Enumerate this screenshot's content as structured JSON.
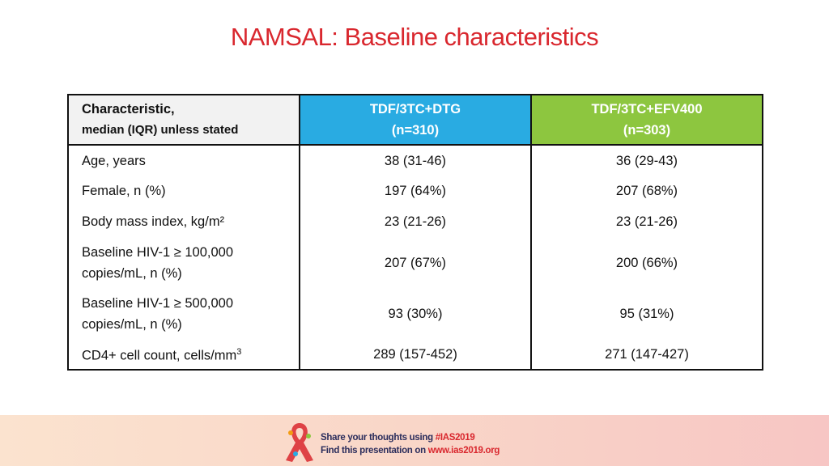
{
  "header": {
    "title": "NAMSAL: Baseline characteristics"
  },
  "table": {
    "columns": [
      {
        "lines": [
          "Characteristic,",
          "median (IQR) unless stated"
        ]
      },
      {
        "lines": [
          "TDF/3TC+DTG",
          "(n=310)"
        ]
      },
      {
        "lines": [
          "TDF/3TC+EFV400",
          "(n=303)"
        ]
      }
    ],
    "rows": [
      [
        {
          "lines": [
            "Age, years"
          ]
        },
        "38 (31-46)",
        "36 (29-43)"
      ],
      [
        {
          "lines": [
            "Female, n (%)"
          ]
        },
        "197 (64%)",
        "207 (68%)"
      ],
      [
        {
          "lines": [
            "Body mass index, kg/m²"
          ]
        },
        "23 (21-26)",
        "23 (21-26)"
      ],
      [
        {
          "lines": [
            "Baseline HIV-1 ≥ 100,000",
            "copies/mL, n (%)"
          ]
        },
        "207 (67%)",
        "200 (66%)"
      ],
      [
        {
          "lines": [
            "Baseline HIV-1 ≥ 500,000",
            "copies/mL, n (%)"
          ]
        },
        "93 (30%)",
        "95 (31%)"
      ],
      [
        {
          "lines": [
            "CD4+ cell count, cells/mm"
          ],
          "sup": "3"
        },
        "289 (157-452)",
        "271 (147-427)"
      ]
    ]
  },
  "footer": {
    "line1": {
      "text": "Share your thoughts using ",
      "highlight": "#IAS2019"
    },
    "line2": {
      "text": "Find this presentation on ",
      "highlight": "www.ias2019.org"
    }
  }
}
